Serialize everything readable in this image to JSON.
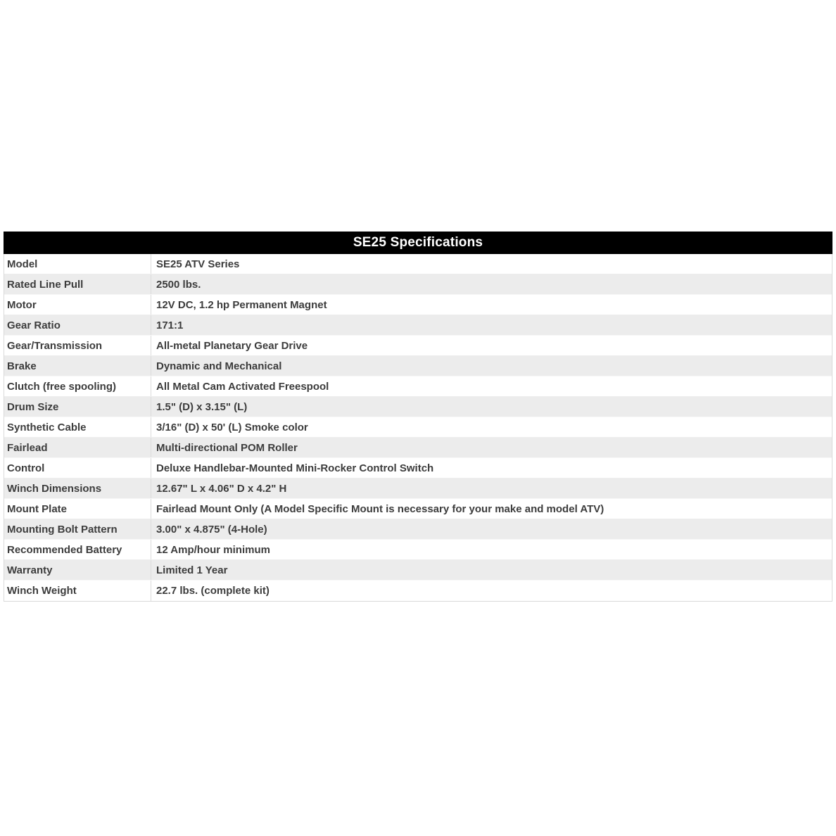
{
  "table": {
    "title": "SE25 Specifications",
    "colors": {
      "header_bg": "#000000",
      "header_text": "#ffffff",
      "row_bg": "#ffffff",
      "row_alt_bg": "#ececec",
      "border": "#d9d9d9",
      "text": "#3c3c3c"
    },
    "rows": [
      {
        "label": "Model",
        "value": "SE25 ATV Series"
      },
      {
        "label": "Rated Line Pull",
        "value": "2500 lbs."
      },
      {
        "label": "Motor",
        "value": "12V DC, 1.2 hp Permanent Magnet"
      },
      {
        "label": "Gear Ratio",
        "value": "171:1"
      },
      {
        "label": "Gear/Transmission",
        "value": "All-metal Planetary Gear Drive"
      },
      {
        "label": "Brake",
        "value": "Dynamic and Mechanical"
      },
      {
        "label": "Clutch (free spooling)",
        "value": "All Metal Cam Activated Freespool"
      },
      {
        "label": "Drum Size",
        "value": "1.5\" (D) x 3.15\" (L)"
      },
      {
        "label": "Synthetic Cable",
        "value": "3/16\" (D) x 50' (L) Smoke color"
      },
      {
        "label": "Fairlead",
        "value": "Multi-directional POM Roller"
      },
      {
        "label": "Control",
        "value": "Deluxe Handlebar-Mounted Mini-Rocker Control Switch"
      },
      {
        "label": "Winch Dimensions",
        "value": "12.67\" L x 4.06\" D x 4.2\" H"
      },
      {
        "label": "Mount Plate",
        "value": "Fairlead Mount Only (A Model Specific Mount is necessary for your make and model ATV)"
      },
      {
        "label": "Mounting Bolt Pattern",
        "value": "3.00\" x 4.875\" (4-Hole)"
      },
      {
        "label": "Recommended Battery",
        "value": "12 Amp/hour minimum"
      },
      {
        "label": "Warranty",
        "value": "Limited 1 Year"
      },
      {
        "label": "Winch Weight",
        "value": "22.7 lbs. (complete kit)"
      }
    ]
  }
}
